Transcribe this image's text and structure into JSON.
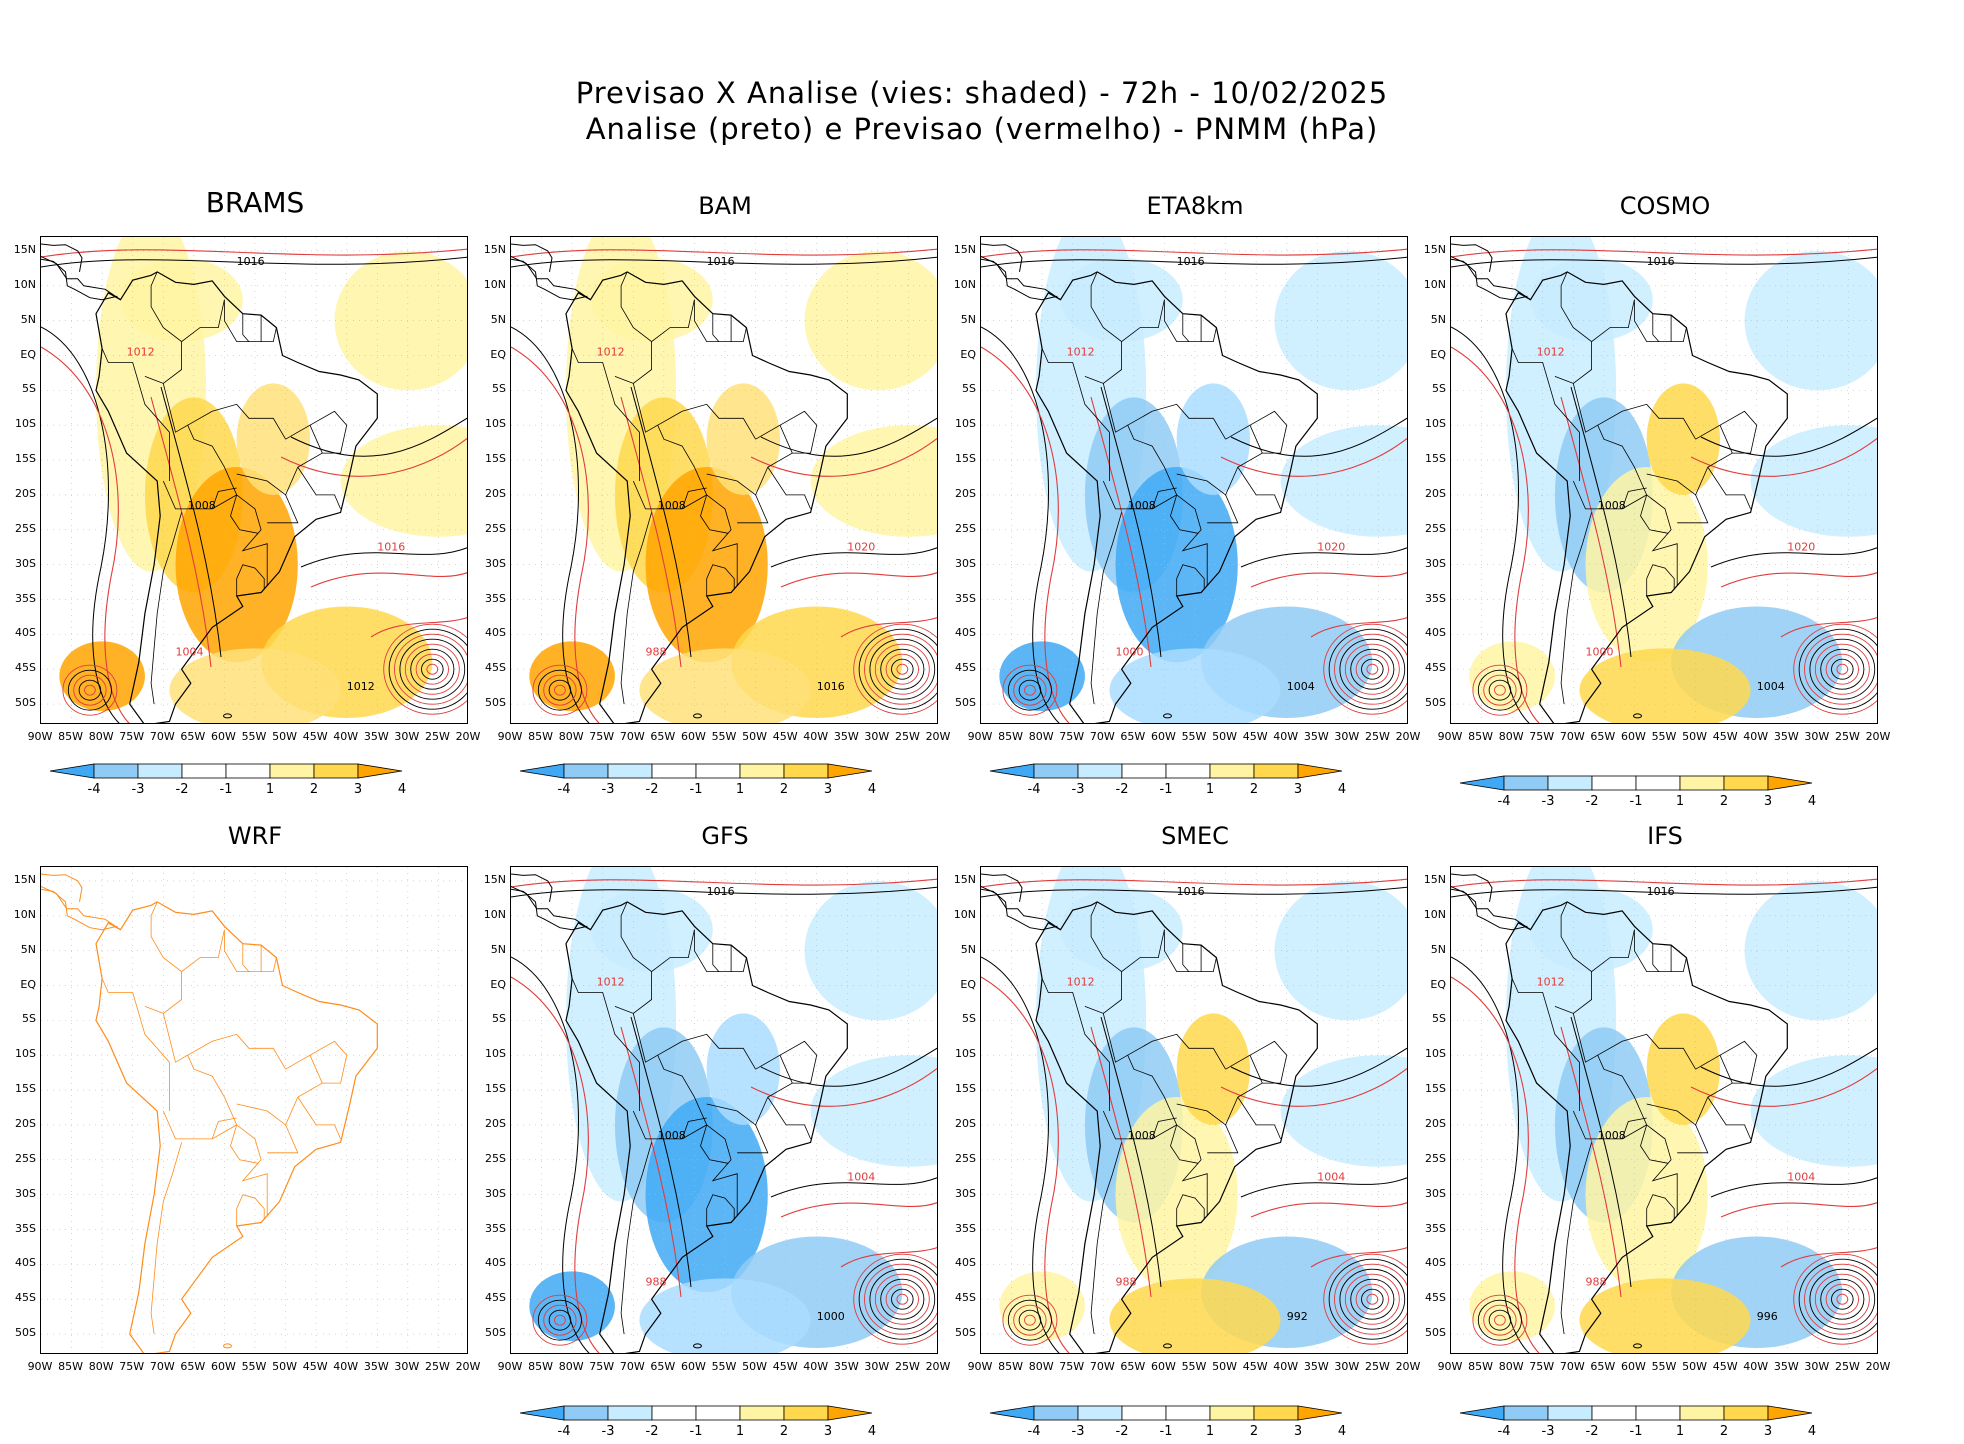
{
  "figure": {
    "title_line1": "Previsao X Analise (vies: shaded) - 72h - 10/02/2025",
    "title_line2": "Analise (preto) e Previsao (vermelho) - PNMM (hPa)"
  },
  "colors": {
    "neg4": "#3fa9f5",
    "neg3": "#8fcbf5",
    "neg2": "#c8ecff",
    "neg1": "#ffffff",
    "pos1": "#ffffff",
    "pos2": "#fff4a3",
    "pos3": "#ffd84d",
    "pos4": "#ffa500",
    "analysis_contour": "#000000",
    "forecast_contour": "#e03c3c",
    "coast_wrf": "#ff8c1a"
  },
  "axes": {
    "lat_labels": [
      "15N",
      "10N",
      "5N",
      "EQ",
      "5S",
      "10S",
      "15S",
      "20S",
      "25S",
      "30S",
      "35S",
      "40S",
      "45S",
      "50S"
    ],
    "lon_labels": [
      "90W",
      "85W",
      "80W",
      "75W",
      "70W",
      "65W",
      "60W",
      "55W",
      "50W",
      "45W",
      "40W",
      "35W",
      "30W",
      "25W",
      "20W"
    ]
  },
  "colorbar": {
    "labels": [
      "-4",
      "-3",
      "-2",
      "-1",
      "1",
      "2",
      "3",
      "4"
    ]
  },
  "panels": [
    {
      "name": "BRAMS",
      "tint": "warm",
      "labels": [
        "1016",
        "1012",
        "1008",
        "1016",
        "1012",
        "1004"
      ]
    },
    {
      "name": "BAM",
      "tint": "warm",
      "labels": [
        "1016",
        "1012",
        "1008",
        "1020",
        "1016",
        "988"
      ]
    },
    {
      "name": "ETA8km",
      "tint": "cool",
      "labels": [
        "1016",
        "1012",
        "1008",
        "1020",
        "1004",
        "1000"
      ]
    },
    {
      "name": "COSMO",
      "tint": "mixed",
      "labels": [
        "1016",
        "1012",
        "1008",
        "1020",
        "1004",
        "1000"
      ]
    },
    {
      "name": "WRF",
      "tint": "none",
      "labels": []
    },
    {
      "name": "GFS",
      "tint": "cool",
      "labels": [
        "1016",
        "1012",
        "1008",
        "1004",
        "1000",
        "988"
      ]
    },
    {
      "name": "SMEC",
      "tint": "mixed",
      "labels": [
        "1016",
        "1012",
        "1008",
        "1004",
        "992",
        "988"
      ]
    },
    {
      "name": "IFS",
      "tint": "mixed",
      "labels": [
        "1016",
        "1012",
        "1008",
        "1004",
        "996",
        "988"
      ]
    }
  ]
}
